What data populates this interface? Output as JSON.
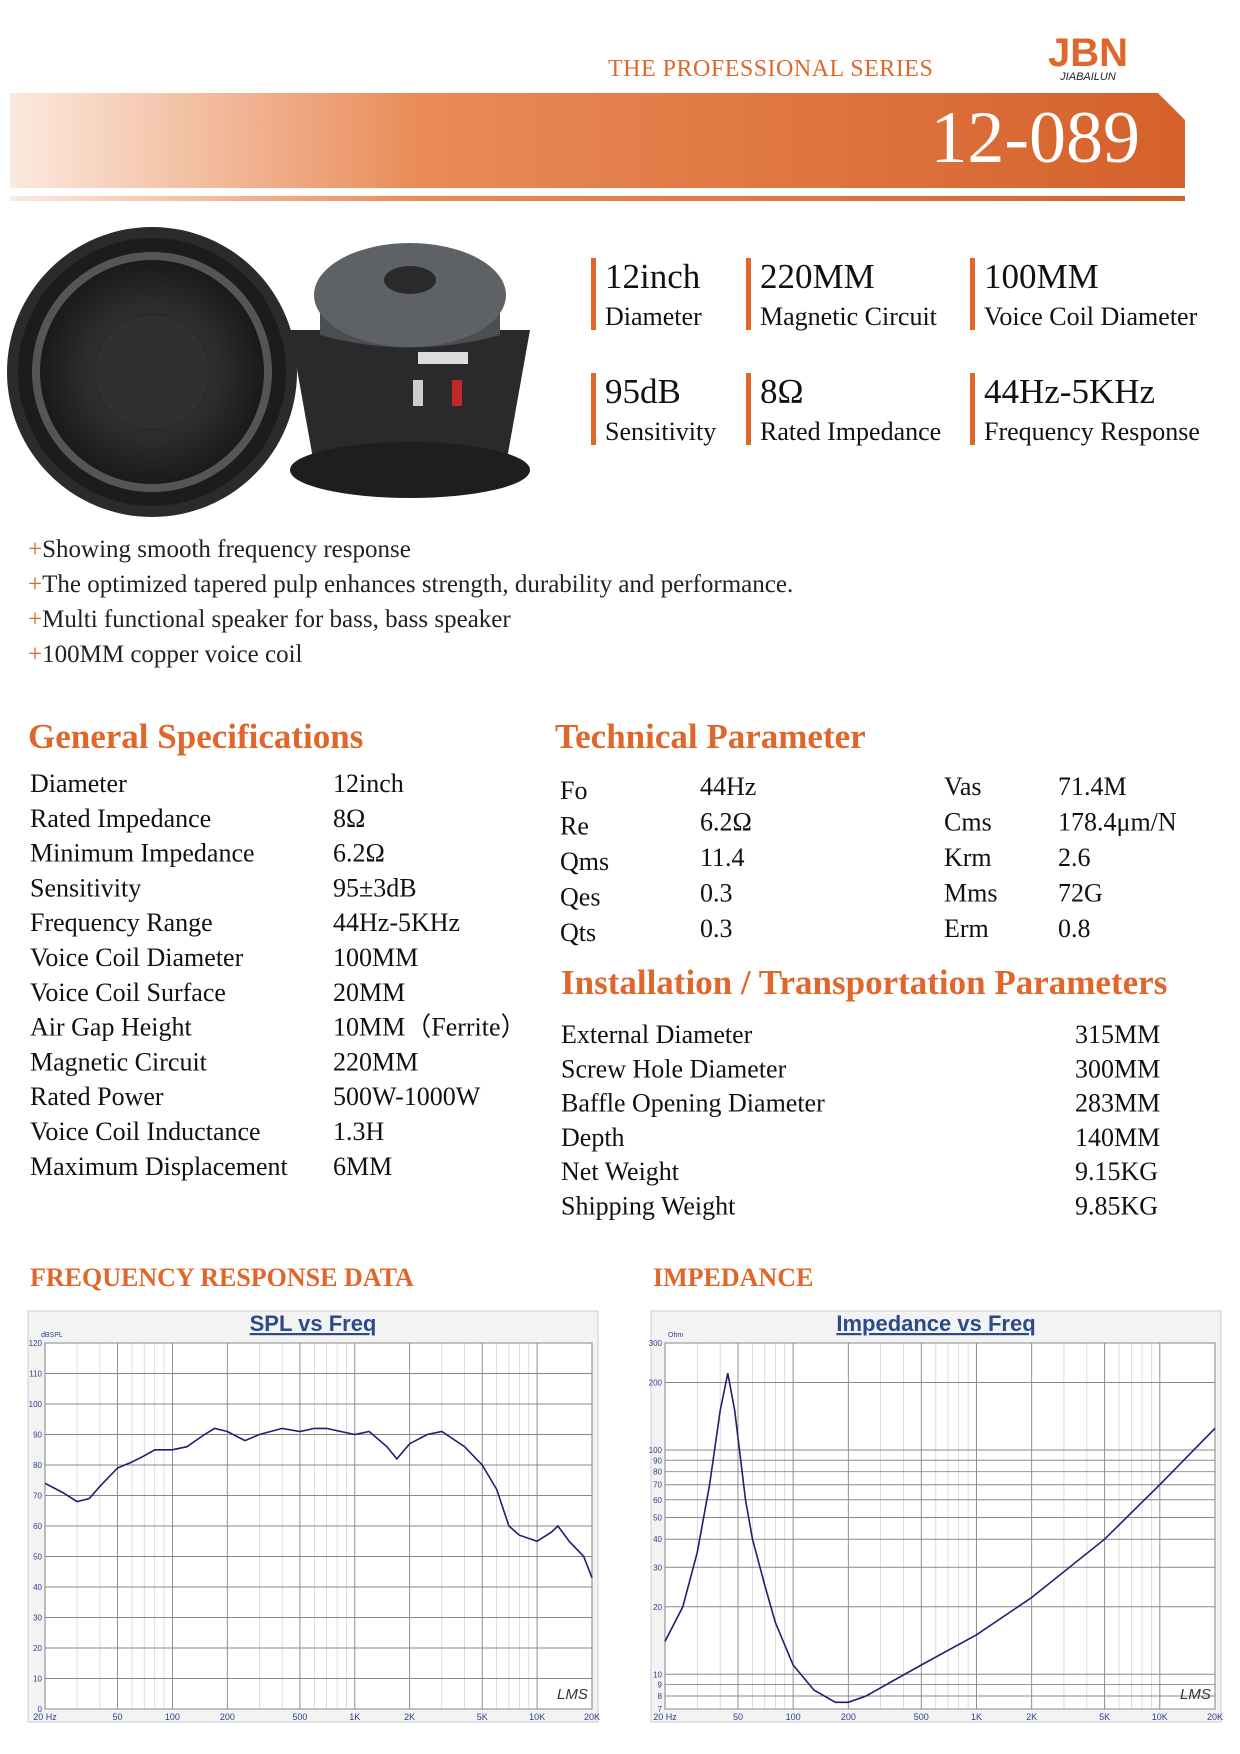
{
  "header": {
    "series": "THE PROFESSIONAL SERIES",
    "logo": "JBN",
    "brand": "JIABAILUN",
    "model": "12-089"
  },
  "highlights": [
    {
      "value": "12inch",
      "label": "Diameter"
    },
    {
      "value": "220MM",
      "label": "Magnetic Circuit"
    },
    {
      "value": "100MM",
      "label": "Voice Coil Diameter"
    },
    {
      "value": "95dB",
      "label": "Sensitivity"
    },
    {
      "value": "8Ω",
      "label": "Rated Impedance"
    },
    {
      "value": "44Hz-5KHz",
      "label": "Frequency Response"
    }
  ],
  "features_bullet": "+",
  "features": [
    "Showing smooth frequency response",
    "The optimized tapered pulp enhances strength, durability and performance.",
    "Multi functional speaker for bass, bass speaker",
    "100MM copper voice coil"
  ],
  "general_specifications": {
    "title": "General Specifications",
    "rows": [
      [
        "Diameter",
        "12inch"
      ],
      [
        "Rated Impedance",
        "8Ω"
      ],
      [
        "Minimum Impedance",
        "6.2Ω"
      ],
      [
        "Sensitivity",
        "95±3dB"
      ],
      [
        "Frequency Range",
        "44Hz-5KHz"
      ],
      [
        "Voice Coil Diameter",
        "100MM"
      ],
      [
        "Voice Coil Surface",
        "20MM"
      ],
      [
        "Air Gap Height",
        "10MM（Ferrite）"
      ],
      [
        "Magnetic Circuit",
        "220MM"
      ],
      [
        "Rated Power",
        "500W-1000W"
      ],
      [
        "Voice Coil Inductance",
        "1.3H"
      ],
      [
        "Maximum Displacement",
        "6MM"
      ]
    ]
  },
  "technical_parameter": {
    "title": "Technical Parameter",
    "rows": [
      [
        "Fo",
        "44Hz",
        "Vas",
        "71.4M"
      ],
      [
        "Re",
        "6.2Ω",
        "Cms",
        "178.4μm/N"
      ],
      [
        "Qms",
        "11.4",
        "Krm",
        "2.6"
      ],
      [
        "Qes",
        "0.3",
        "Mms",
        "72G"
      ],
      [
        "Qts",
        "0.3",
        "Erm",
        "0.8"
      ]
    ]
  },
  "installation": {
    "title": "Installation / Transportation Parameters",
    "rows": [
      [
        "External Diameter",
        "315MM"
      ],
      [
        "Screw Hole Diameter",
        "300MM"
      ],
      [
        "Baffle Opening Diameter",
        "283MM"
      ],
      [
        "Depth",
        "140MM"
      ],
      [
        "Net Weight",
        "9.15KG"
      ],
      [
        "Shipping Weight",
        "9.85KG"
      ]
    ]
  },
  "sections": {
    "frequency": "FREQUENCY RESPONSE DATA",
    "impedance": "IMPEDANCE"
  },
  "chart_data": [
    {
      "type": "line",
      "title": "SPL vs Freq",
      "y_label": "dBSPL",
      "watermark": "LMS",
      "xlog": true,
      "ylog": false,
      "grid": true,
      "xlim": [
        20,
        20000
      ],
      "xticks": [
        {
          "value": 20,
          "label": "20 Hz"
        },
        50,
        100,
        200,
        500,
        {
          "value": 1000,
          "label": "1K"
        },
        {
          "value": 2000,
          "label": "2K"
        },
        {
          "value": 5000,
          "label": "5K"
        },
        {
          "value": 10000,
          "label": "10K"
        },
        {
          "value": 20000,
          "label": "20K"
        }
      ],
      "ylim": [
        0,
        120
      ],
      "yticks": [
        0,
        10,
        20,
        30,
        40,
        50,
        60,
        70,
        80,
        90,
        100,
        110,
        120
      ],
      "x": [
        20,
        25,
        30,
        35,
        40,
        50,
        60,
        70,
        80,
        100,
        120,
        150,
        170,
        200,
        250,
        300,
        400,
        500,
        600,
        700,
        1000,
        1200,
        1500,
        1700,
        2000,
        2500,
        3000,
        4000,
        5000,
        6000,
        7000,
        8000,
        10000,
        12000,
        13000,
        15000,
        18000,
        20000
      ],
      "series": [
        {
          "color": "#1f1f6e",
          "values": [
            74,
            71,
            68,
            69,
            73,
            79,
            81,
            83,
            85,
            85,
            86,
            90,
            92,
            91,
            88,
            90,
            92,
            91,
            92,
            92,
            90,
            91,
            86,
            82,
            87,
            90,
            91,
            86,
            80,
            72,
            60,
            57,
            55,
            58,
            60,
            55,
            50,
            43
          ]
        }
      ]
    },
    {
      "type": "line",
      "title": "Impedance vs Freq",
      "y_label": "Ohm",
      "watermark": "LMS",
      "xlog": true,
      "ylog": true,
      "grid": true,
      "xlim": [
        20,
        20000
      ],
      "xticks": [
        {
          "value": 20,
          "label": "20 Hz"
        },
        50,
        100,
        200,
        500,
        {
          "value": 1000,
          "label": "1K"
        },
        {
          "value": 2000,
          "label": "2K"
        },
        {
          "value": 5000,
          "label": "5K"
        },
        {
          "value": 10000,
          "label": "10K"
        },
        {
          "value": 20000,
          "label": "20K"
        }
      ],
      "ylim": [
        7,
        300
      ],
      "yticks": [
        7,
        8,
        9,
        10,
        20,
        30,
        40,
        50,
        60,
        70,
        80,
        90,
        100,
        200,
        300
      ],
      "x": [
        20,
        25,
        30,
        35,
        40,
        44,
        48,
        55,
        60,
        70,
        80,
        100,
        130,
        170,
        200,
        250,
        300,
        500,
        1000,
        2000,
        5000,
        10000,
        20000
      ],
      "series": [
        {
          "color": "#1f1f6e",
          "values": [
            14,
            20,
            35,
            70,
            150,
            220,
            150,
            60,
            40,
            25,
            17,
            11,
            8.5,
            7.5,
            7.5,
            8,
            8.7,
            11,
            15,
            22,
            40,
            70,
            125
          ]
        }
      ]
    }
  ]
}
